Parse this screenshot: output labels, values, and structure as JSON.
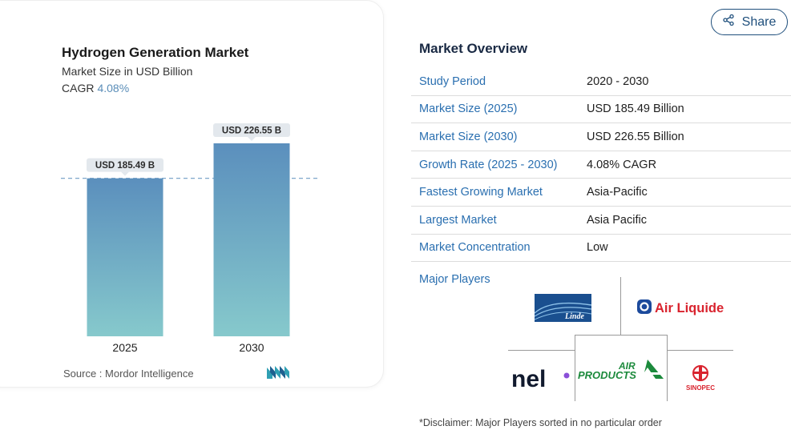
{
  "chart": {
    "title": "Hydrogen Generation Market",
    "subtitle": "Market Size in USD Billion",
    "cagr_label": "CAGR",
    "cagr_value": "4.08%",
    "source": "Source :  Mordor Intelligence"
  },
  "chart_data": {
    "type": "bar",
    "categories": [
      "2025",
      "2030"
    ],
    "values": [
      185.49,
      226.55
    ],
    "data_labels": [
      "USD 185.49 B",
      "USD 226.55 B"
    ],
    "title": "Hydrogen Generation Market",
    "subtitle": "Market Size in USD Billion",
    "xlabel": "",
    "ylabel": "",
    "ylim": [
      0,
      226.55
    ],
    "grid": false,
    "reference_line": "dashed line at 2025 value",
    "colors": {
      "bar_top": "#5b8fbd",
      "bar_bottom": "#86c9cc",
      "label_bg": "#e3e8ed",
      "dash": "#6f9cc4"
    }
  },
  "share": {
    "label": "Share",
    "icon": "share-icon"
  },
  "overview": {
    "title": "Market Overview",
    "rows": [
      {
        "label": "Study Period",
        "value": "2020 - 2030"
      },
      {
        "label": "Market Size (2025)",
        "value": "USD 185.49 Billion"
      },
      {
        "label": "Market Size (2030)",
        "value": "USD 226.55 Billion"
      },
      {
        "label": "Growth Rate (2025 - 2030)",
        "value": "4.08% CAGR"
      },
      {
        "label": "Fastest Growing Market",
        "value": "Asia-Pacific"
      },
      {
        "label": "Largest Market",
        "value": "Asia Pacific"
      },
      {
        "label": "Market Concentration",
        "value": "Low"
      }
    ],
    "players_label": "Major Players",
    "players": [
      {
        "name": "Linde",
        "logo_text": "Linde"
      },
      {
        "name": "Air Liquide",
        "logo_text": "Air Liquide"
      },
      {
        "name": "nel",
        "logo_text": "nel"
      },
      {
        "name": "Air Products",
        "logo_text_1": "AIR",
        "logo_text_2": "PRODUCTS"
      },
      {
        "name": "Sinopec",
        "logo_text": "SINOPEC"
      }
    ],
    "disclaimer": "*Disclaimer: Major Players sorted in no particular order"
  },
  "colors": {
    "link_blue": "#2a6fb0",
    "navy": "#1f4f7c"
  }
}
